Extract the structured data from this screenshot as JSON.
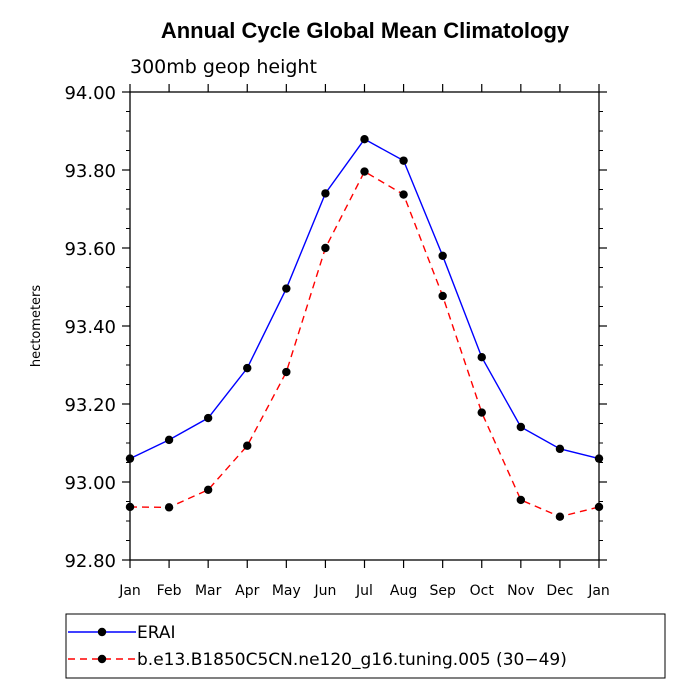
{
  "chart_data": {
    "type": "line",
    "title": "Annual Cycle Global Mean Climatology",
    "subtitle": "300mb geop height",
    "ylabel": "hectometers",
    "xlabel": "",
    "categories": [
      "Jan",
      "Feb",
      "Mar",
      "Apr",
      "May",
      "Jun",
      "Jul",
      "Aug",
      "Sep",
      "Oct",
      "Nov",
      "Dec",
      "Jan"
    ],
    "ylim": [
      92.8,
      94.0
    ],
    "yticks": [
      "92.80",
      "93.00",
      "93.20",
      "93.40",
      "93.60",
      "93.80",
      "94.00"
    ],
    "grid": false,
    "legend_position": "bottom",
    "series": [
      {
        "name": "ERAI",
        "color": "#0000ff",
        "dash": "solid",
        "values": [
          93.06,
          93.108,
          93.164,
          93.292,
          93.496,
          93.74,
          93.879,
          93.824,
          93.58,
          93.32,
          93.141,
          93.085,
          93.06
        ]
      },
      {
        "name": "b.e13.B1850C5CN.ne120_g16.tuning.005 (30−49)",
        "color": "#ff0000",
        "dash": "dashed",
        "values": [
          92.936,
          92.935,
          92.98,
          93.093,
          93.282,
          93.6,
          93.796,
          93.737,
          93.477,
          93.178,
          92.954,
          92.911,
          92.936
        ]
      }
    ]
  }
}
